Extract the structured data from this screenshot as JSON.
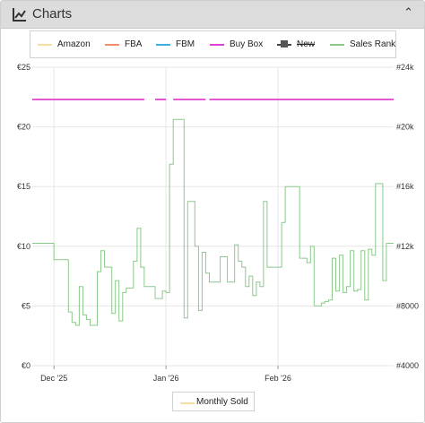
{
  "header": {
    "title": "Charts",
    "icon": "line-chart-icon",
    "collapse_icon": "chevron-up-icon"
  },
  "legend": {
    "items": [
      {
        "key": "amazon",
        "label": "Amazon",
        "color": "#f6c05a"
      },
      {
        "key": "fba",
        "label": "FBA",
        "color": "#f28b6b"
      },
      {
        "key": "fbm",
        "label": "FBM",
        "color": "#3ab0e8"
      },
      {
        "key": "buybox",
        "label": "Buy Box",
        "color": "#e040d0"
      },
      {
        "key": "new",
        "label": "New",
        "color": "#444444",
        "hidden": true
      },
      {
        "key": "salesrank",
        "label": "Sales Rank",
        "color": "#8cc88c"
      }
    ]
  },
  "bottom_legend": {
    "label": "Monthly Sold",
    "color": "#f6c05a"
  },
  "chart_data": {
    "type": "line",
    "x_range": [
      "2025-11-25",
      "2026-03-05"
    ],
    "x_ticks": [
      {
        "date": "2025-12-01",
        "label": "Dec '25"
      },
      {
        "date": "2026-01-01",
        "label": "Jan '26"
      },
      {
        "date": "2026-02-01",
        "label": "Feb '26"
      }
    ],
    "y_left": {
      "ylim": [
        0,
        25
      ],
      "ticks": [
        0,
        5,
        10,
        15,
        20,
        25
      ],
      "tick_labels": [
        "€0",
        "€5",
        "€10",
        "€15",
        "€20",
        "€25"
      ]
    },
    "y_right": {
      "ylim": [
        4000,
        24000
      ],
      "ticks": [
        4000,
        8000,
        12000,
        16000,
        20000,
        24000
      ],
      "tick_labels": [
        "#4000",
        "#8000",
        "#12k",
        "#16k",
        "#20k",
        "#24k"
      ]
    },
    "grid": true,
    "series": [
      {
        "name": "Buy Box",
        "axis": "left",
        "color": "#e040d0",
        "segments": [
          [
            [
              "2025-11-25",
              22.3
            ],
            [
              "2025-12-26",
              22.3
            ]
          ],
          [
            [
              "2025-12-29",
              22.3
            ],
            [
              "2026-01-01",
              22.3
            ]
          ],
          [
            [
              "2026-01-03",
              22.3
            ],
            [
              "2026-01-12",
              22.3
            ]
          ],
          [
            [
              "2026-01-13",
              22.3
            ],
            [
              "2026-03-05",
              22.3
            ]
          ]
        ]
      },
      {
        "name": "Sales Rank",
        "axis": "right",
        "color": "#8cc88c",
        "step": true,
        "points": [
          [
            "2025-11-25",
            12200
          ],
          [
            "2025-11-30",
            12200
          ],
          [
            "2025-12-01",
            11100
          ],
          [
            "2025-12-05",
            11100
          ],
          [
            "2025-12-05",
            7600
          ],
          [
            "2025-12-06",
            6900
          ],
          [
            "2025-12-07",
            6700
          ],
          [
            "2025-12-08",
            9300
          ],
          [
            "2025-12-09",
            7400
          ],
          [
            "2025-12-10",
            7100
          ],
          [
            "2025-12-11",
            6700
          ],
          [
            "2025-12-13",
            10300
          ],
          [
            "2025-12-14",
            11700
          ],
          [
            "2025-12-15",
            10600
          ],
          [
            "2025-12-17",
            7500
          ],
          [
            "2025-12-18",
            9700
          ],
          [
            "2025-12-19",
            7000
          ],
          [
            "2025-12-20",
            8900
          ],
          [
            "2025-12-21",
            9200
          ],
          [
            "2025-12-23",
            11000
          ],
          [
            "2025-12-24",
            13200
          ],
          [
            "2025-12-25",
            10600
          ],
          [
            "2025-12-26",
            9300
          ],
          [
            "2025-12-28",
            9300
          ],
          [
            "2025-12-29",
            8500
          ],
          [
            "2025-12-30",
            8500
          ],
          [
            "2025-12-31",
            9000
          ],
          [
            "2026-01-01",
            8900
          ],
          [
            "2026-01-02",
            8900
          ],
          [
            "2026-01-02",
            17500
          ],
          [
            "2026-01-03",
            20500
          ],
          [
            "2026-01-06",
            7200
          ],
          [
            "2026-01-07",
            15000
          ],
          [
            "2026-01-09",
            12000
          ],
          [
            "2026-01-10",
            7700
          ],
          [
            "2026-01-11",
            11600
          ],
          [
            "2026-01-12",
            10200
          ],
          [
            "2026-01-13",
            9600
          ],
          [
            "2026-01-14",
            9600
          ],
          [
            "2026-01-16",
            11300
          ],
          [
            "2026-01-18",
            9600
          ],
          [
            "2026-01-20",
            12100
          ],
          [
            "2026-01-21",
            11000
          ],
          [
            "2026-01-22",
            10600
          ],
          [
            "2026-01-23",
            9300
          ],
          [
            "2026-01-24",
            10000
          ],
          [
            "2026-01-25",
            8700
          ],
          [
            "2026-01-26",
            9600
          ],
          [
            "2026-01-27",
            9300
          ],
          [
            "2026-01-28",
            15000
          ],
          [
            "2026-01-29",
            10600
          ],
          [
            "2026-01-31",
            10600
          ],
          [
            "2026-02-02",
            13600
          ],
          [
            "2026-02-03",
            16000
          ],
          [
            "2026-02-06",
            16000
          ],
          [
            "2026-02-07",
            11200
          ],
          [
            "2026-02-09",
            10900
          ],
          [
            "2026-02-10",
            12000
          ],
          [
            "2026-02-11",
            8000
          ],
          [
            "2026-02-12",
            8000
          ],
          [
            "2026-02-13",
            8200
          ],
          [
            "2026-02-14",
            8300
          ],
          [
            "2026-02-15",
            8400
          ],
          [
            "2026-02-16",
            11200
          ],
          [
            "2026-02-17",
            9000
          ],
          [
            "2026-02-18",
            11400
          ],
          [
            "2026-02-19",
            8900
          ],
          [
            "2026-02-20",
            9300
          ],
          [
            "2026-02-21",
            11700
          ],
          [
            "2026-02-22",
            9000
          ],
          [
            "2026-02-23",
            9100
          ],
          [
            "2026-02-24",
            11700
          ],
          [
            "2026-02-25",
            8400
          ],
          [
            "2026-02-26",
            11800
          ],
          [
            "2026-02-27",
            11400
          ],
          [
            "2026-02-28",
            16200
          ],
          [
            "2026-03-01",
            16200
          ],
          [
            "2026-03-02",
            9700
          ],
          [
            "2026-03-03",
            12200
          ],
          [
            "2026-03-05",
            12200
          ]
        ]
      }
    ]
  }
}
